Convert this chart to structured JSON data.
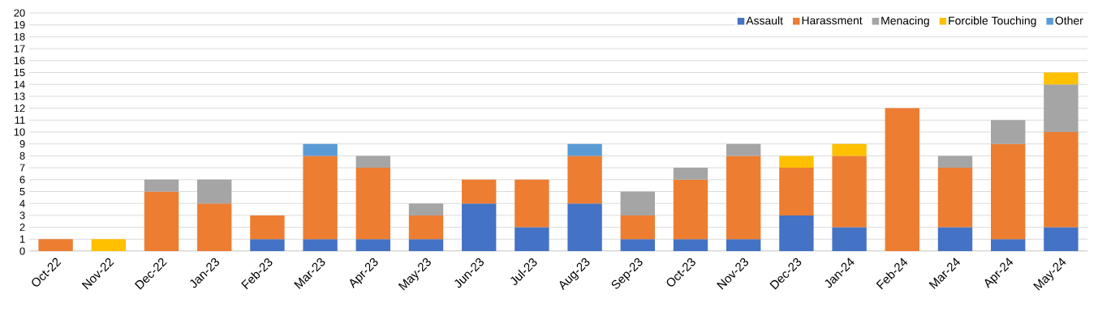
{
  "chart_data": {
    "type": "bar",
    "stacked": true,
    "categories": [
      "Oct-22",
      "Nov-22",
      "Dec-22",
      "Jan-23",
      "Feb-23",
      "Mar-23",
      "Apr-23",
      "May-23",
      "Jun-23",
      "Jul-23",
      "Aug-23",
      "Sep-23",
      "Oct-23",
      "Nov-23",
      "Dec-23",
      "Jan-24",
      "Feb-24",
      "Mar-24",
      "Apr-24",
      "May-24"
    ],
    "series": [
      {
        "name": "Assault",
        "color": "#4472c4",
        "values": [
          null,
          null,
          null,
          null,
          1,
          1,
          1,
          1,
          4,
          2,
          4,
          1,
          1,
          1,
          3,
          2,
          null,
          2,
          1,
          2
        ]
      },
      {
        "name": "Harassment",
        "color": "#ed7d31",
        "values": [
          1,
          null,
          5,
          4,
          2,
          7,
          6,
          2,
          2,
          4,
          4,
          2,
          5,
          7,
          4,
          6,
          12,
          5,
          8,
          8
        ]
      },
      {
        "name": "Menacing",
        "color": "#a5a5a5",
        "values": [
          null,
          null,
          1,
          2,
          null,
          null,
          1,
          1,
          null,
          null,
          null,
          2,
          1,
          1,
          null,
          null,
          null,
          1,
          2,
          4
        ]
      },
      {
        "name": "Forcible Touching",
        "color": "#ffc000",
        "values": [
          null,
          1,
          null,
          null,
          null,
          null,
          null,
          null,
          null,
          null,
          null,
          null,
          null,
          null,
          1,
          1,
          null,
          null,
          null,
          1
        ]
      },
      {
        "name": "Other",
        "color": "#5b9bd5",
        "values": [
          null,
          null,
          null,
          null,
          null,
          1,
          null,
          null,
          null,
          null,
          1,
          null,
          null,
          null,
          null,
          null,
          null,
          null,
          null,
          null
        ]
      }
    ],
    "ylim": [
      0,
      20
    ],
    "yticks": [
      0,
      1,
      2,
      3,
      4,
      5,
      6,
      7,
      8,
      9,
      10,
      11,
      12,
      13,
      14,
      15,
      16,
      17,
      18,
      19,
      20
    ],
    "grid": "y",
    "legend": "top right"
  }
}
